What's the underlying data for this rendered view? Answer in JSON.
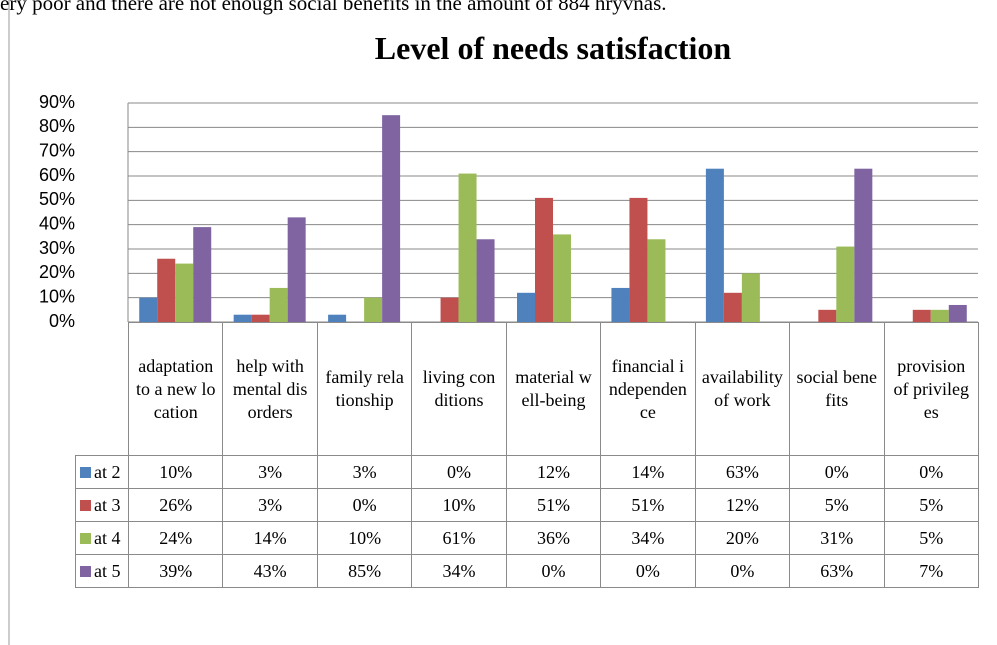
{
  "page_text": "ery poor and there are not enough social benefits in the amount of 884 hryvnas.",
  "chart_data": {
    "type": "bar",
    "title": "Level of needs satisfaction",
    "categories": [
      "adaptation to a new location",
      "help with mental disorders",
      "family relationship",
      "living conditions",
      "material well-being",
      "financial independence",
      "availability of work",
      "social benefits",
      "provision of privileges"
    ],
    "series": [
      {
        "name": "at 2",
        "color": "#4f81bd",
        "values": [
          10,
          3,
          3,
          0,
          12,
          14,
          63,
          0,
          0
        ],
        "value_labels": [
          "10%",
          "3%",
          "3%",
          "0%",
          "12%",
          "14%",
          "63%",
          "0%",
          "0%"
        ]
      },
      {
        "name": "at 3",
        "color": "#c0504d",
        "values": [
          26,
          3,
          0,
          10,
          51,
          51,
          12,
          5,
          5
        ],
        "value_labels": [
          "26%",
          "3%",
          "0%",
          "10%",
          "51%",
          "51%",
          "12%",
          "5%",
          "5%"
        ]
      },
      {
        "name": "at 4",
        "color": "#9bbb59",
        "values": [
          24,
          14,
          10,
          61,
          36,
          34,
          20,
          31,
          5
        ],
        "value_labels": [
          "24%",
          "14%",
          "10%",
          "61%",
          "36%",
          "34%",
          "20%",
          "31%",
          "5%"
        ]
      },
      {
        "name": "at 5",
        "color": "#8064a2",
        "values": [
          39,
          43,
          85,
          34,
          0,
          0,
          0,
          63,
          7
        ],
        "value_labels": [
          "39%",
          "43%",
          "85%",
          "34%",
          "0%",
          "0%",
          "0%",
          "63%",
          "7%"
        ]
      }
    ],
    "ylim": [
      0,
      90
    ],
    "yticks": [
      {
        "value": 0,
        "label": "0%"
      },
      {
        "value": 10,
        "label": "10%"
      },
      {
        "value": 20,
        "label": "20%"
      },
      {
        "value": 30,
        "label": "30%"
      },
      {
        "value": 40,
        "label": "40%"
      },
      {
        "value": 50,
        "label": "50%"
      },
      {
        "value": 60,
        "label": "60%"
      },
      {
        "value": 70,
        "label": "70%"
      },
      {
        "value": 80,
        "label": "80%"
      },
      {
        "value": 90,
        "label": "90%"
      }
    ],
    "grid": true
  }
}
